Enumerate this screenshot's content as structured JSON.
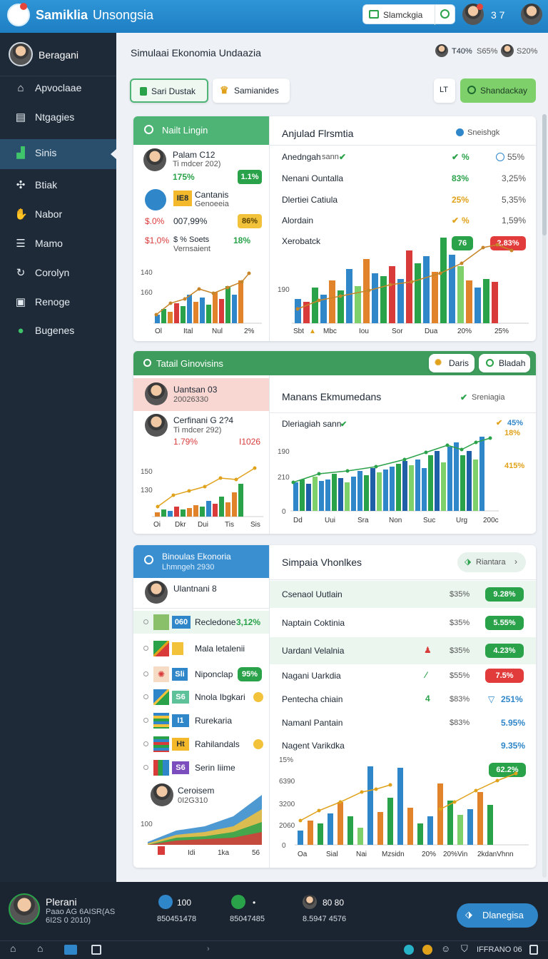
{
  "header": {
    "app_name": "Samiklia",
    "app_sub": "Unsongsia",
    "search_placeholder": "Slamckgia",
    "notif_count": "3 7"
  },
  "sidebar": {
    "user": "Beragani",
    "items": [
      {
        "label": "Apvoclaae",
        "icon": "home-icon"
      },
      {
        "label": "Ntgagies",
        "icon": "document-icon"
      },
      {
        "label": "Sinis",
        "icon": "chart-icon"
      },
      {
        "label": "Btiak",
        "icon": "network-icon"
      },
      {
        "label": "Nabor",
        "icon": "hand-icon"
      },
      {
        "label": "Mamo",
        "icon": "list-icon"
      },
      {
        "label": "Corolyn",
        "icon": "refresh-icon"
      },
      {
        "label": "Renoge",
        "icon": "report-icon"
      },
      {
        "label": "Bugenes",
        "icon": "user-icon"
      }
    ]
  },
  "main": {
    "title": "Simulaai Ekonomia Undaazia",
    "top_stats": [
      "T40%",
      "S65%",
      "S20%"
    ],
    "buttons": {
      "tab1": "Sari Dustak",
      "tab2": "Samianides",
      "action": "Shandackay",
      "small": "LT"
    }
  },
  "panel1": {
    "left_title": "Nailt Lingin",
    "p1_name": "Palam C12",
    "p1_sub": "Ti mdcer 202)",
    "p1_val": "175%",
    "p1_pill": "1.1%",
    "p2_badge": "IE8",
    "p2_name": "Cantanis",
    "p2_sub": "Genoeeia",
    "row3": [
      "$.0%",
      "007,99%",
      "86%"
    ],
    "row4": [
      "$1,0%",
      "$ % Soets",
      "18%"
    ],
    "row4_sub": "Vernsaient",
    "left_chart": {
      "ylabels": [
        "140",
        "160"
      ],
      "xlabels": [
        "Ol",
        "Ital",
        "Nul",
        "2%"
      ]
    },
    "right_title": "Anjulad Flrsmtia",
    "right_tag": "Sneishgk",
    "rows": [
      {
        "name": "Anedngah",
        "sub": "sann",
        "v1": "%",
        "v2": "55%"
      },
      {
        "name": "Nenani Ountalla",
        "v1": "83%",
        "v2": "3,25%"
      },
      {
        "name": "Dlertiei Catiula",
        "v1": "25%",
        "v2": "5,35%"
      },
      {
        "name": "Alordain",
        "v1": "%",
        "v2": "1,59%"
      },
      {
        "name": "Xerobatck",
        "v1": "76",
        "v2": "2.83%"
      }
    ],
    "right_chart": {
      "ylabel": "190",
      "xlabels": [
        "Sbt",
        "Mbc",
        "Iou",
        "Sor",
        "Dua",
        "20%",
        "25%"
      ]
    }
  },
  "panel2": {
    "left_title": "Tatail Ginovisins",
    "btn1": "Daris",
    "btn2": "Bladah",
    "p1_name": "Uantsan 03",
    "p1_sub": "20026330",
    "p2_name": "Cerfinani G 2?4",
    "p2_sub": "Ti mdcer 292)",
    "p2_v1": "1.79%",
    "p2_v2": "I1026",
    "left_chart": {
      "ylabels": [
        "150",
        "130"
      ],
      "xlabels": [
        "Oi",
        "Dkr",
        "Dui",
        "Tis",
        "Sis"
      ]
    },
    "right_title": "Manans Ekmumedans",
    "right_tag": "Sreniagia",
    "right_sub": "Dleriagiah sann",
    "right_vals": [
      "45%",
      "18%",
      "415%"
    ],
    "right_chart": {
      "ylabels": [
        "190",
        "210",
        "0"
      ],
      "xlabels": [
        "Dd",
        "Uui",
        "Sra",
        "Non",
        "Suc",
        "Urg",
        "200c"
      ]
    }
  },
  "panel3": {
    "left_title": "Binoulas Ekonoria",
    "left_sub": "Lhmngeh 2930",
    "person": "Ulantnani 8",
    "list": [
      {
        "badge": "060",
        "label": "Recledone",
        "val": "3,12%"
      },
      {
        "badge": "",
        "label": "Mala letalenii",
        "val": ""
      },
      {
        "badge": "Sli",
        "label": "Niponclap",
        "val": "95%"
      },
      {
        "badge": "S6",
        "label": "Nnola Ibgkari",
        "val": ""
      },
      {
        "badge": "I1",
        "label": "Rurekaria",
        "val": ""
      },
      {
        "badge": "Ht",
        "label": "Rahilandals",
        "val": ""
      },
      {
        "badge": "S6",
        "label": "Serin Iiime",
        "val": ""
      }
    ],
    "person2": "Ceroisem",
    "person2_sub": "0I2G310",
    "left_chart": {
      "ylabel": "100",
      "xlabels": [
        "Idi",
        "1ka",
        "56"
      ]
    },
    "right_title": "Simpaia Vhonlkes",
    "right_btn": "Riantara",
    "rows": [
      {
        "name": "Csenaol Uutlain",
        "v1": "$35%",
        "v2": "9.28%"
      },
      {
        "name": "Naptain Coktinia",
        "v1": "$35%",
        "v2": "5.55%"
      },
      {
        "name": "Uardanl Velalnia",
        "v1": "$35%",
        "v2": "4.23%"
      },
      {
        "name": "Nagani Uarkdia",
        "v1": "$55%",
        "v2": "7.5%"
      },
      {
        "name": "Pentecha chiain",
        "v1": "$83%",
        "v2": "251%"
      },
      {
        "name": "Namanl Pantain",
        "v1": "$83%",
        "v2": "5.95%"
      },
      {
        "name": "Nagent Varikdka",
        "v1": "",
        "v2": "9.35%"
      }
    ],
    "right_chart": {
      "ylabels": [
        "15%",
        "6390",
        "3200",
        "2060",
        "0"
      ],
      "pill": "62.2%",
      "xlabels": [
        "Oa",
        "Sial",
        "Nai",
        "Mzsidn",
        "20%",
        "20%Vin",
        "2kdanVhnn"
      ]
    }
  },
  "footer": {
    "user": "Plerani",
    "user_sub1": "Paao AG 6AISR(AS",
    "user_sub2": "6I2S 0 2010)",
    "stat1": "100",
    "stat1_sub": "850451478",
    "stat2": "•",
    "stat2_sub": "85047485",
    "stat3": "80 80",
    "stat3_sub": "8.5947 4576",
    "btn": "Dlanegisa"
  },
  "navbar": {
    "right": "IFFRANO 06"
  }
}
